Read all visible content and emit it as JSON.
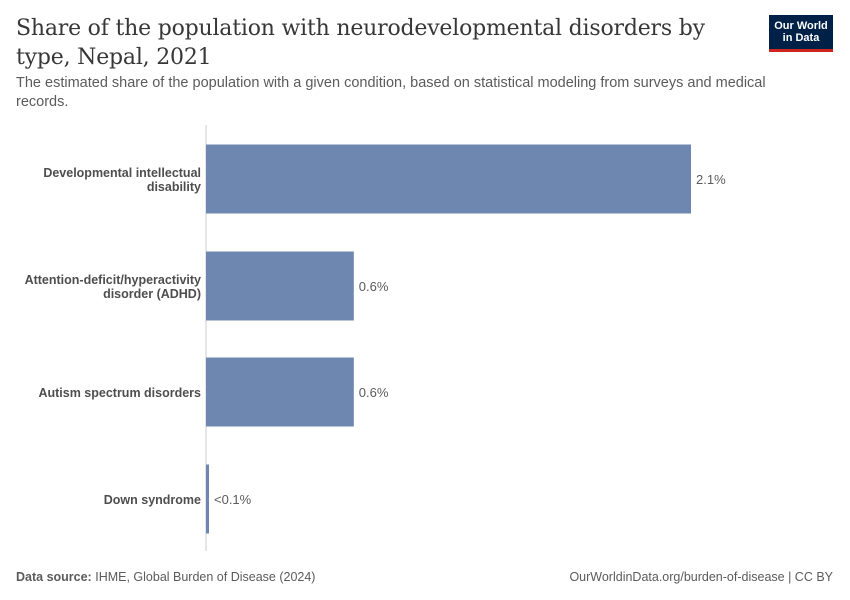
{
  "header": {
    "title": "Share of the population with neurodevelopmental disorders by type, Nepal, 2021",
    "subtitle": "The estimated share of the population with a given condition, based on statistical modeling from surveys and medical records."
  },
  "logo": {
    "line1": "Our World",
    "line2": "in Data"
  },
  "footer": {
    "source_label": "Data source:",
    "source_text": "IHME, Global Burden of Disease (2024)",
    "url_text": "OurWorldinData.org/burden-of-disease | CC BY"
  },
  "colors": {
    "bar": "#6d87b0",
    "axis": "#cccccc",
    "logo_bg": "#002147",
    "logo_accent": "#ce261e"
  },
  "chart_data": {
    "type": "bar",
    "orientation": "horizontal",
    "categories": [
      [
        "Developmental intellectual",
        "disability"
      ],
      [
        "Attention-deficit/hyperactivity",
        "disorder (ADHD)"
      ],
      [
        "Autism spectrum disorders"
      ],
      [
        "Down syndrome"
      ]
    ],
    "values": [
      2.1,
      0.64,
      0.64,
      0.01
    ],
    "value_labels": [
      "2.1%",
      "0.6%",
      "0.6%",
      "<0.1%"
    ],
    "unit": "%",
    "xlim": [
      0,
      2.1
    ],
    "grid": false,
    "legend": "none"
  }
}
